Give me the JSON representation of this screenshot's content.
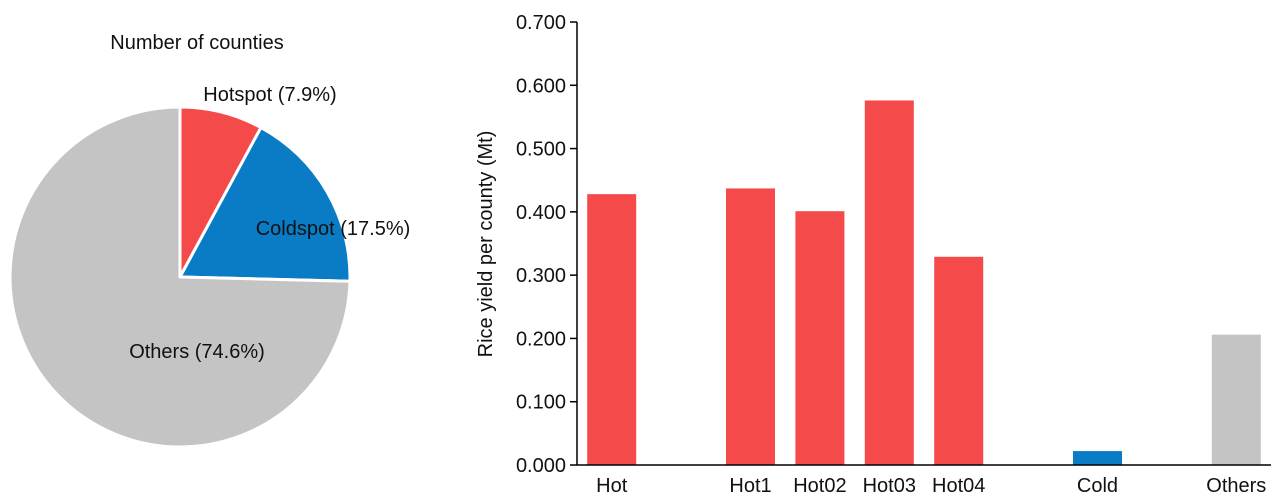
{
  "chart_data": [
    {
      "type": "pie",
      "title": "Number of counties",
      "slices": [
        {
          "label": "Hotspot (7.9%)",
          "value": 7.9,
          "color": "#f44a4a"
        },
        {
          "label": "Coldspot (17.5%)",
          "value": 17.5,
          "color": "#0a7cc6"
        },
        {
          "label": "Others (74.6%)",
          "value": 74.6,
          "color": "#c4c4c4"
        }
      ]
    },
    {
      "type": "bar",
      "ylabel": "Rice yield per county (Mt)",
      "ylim": [
        0,
        0.7
      ],
      "yticks": [
        "0.000",
        "0.100",
        "0.200",
        "0.300",
        "0.400",
        "0.500",
        "0.600",
        "0.700"
      ],
      "ytick_values": [
        0,
        0.1,
        0.2,
        0.3,
        0.4,
        0.5,
        0.6,
        0.7
      ],
      "categories": [
        "Hot",
        "",
        "Hot1",
        "Hot02",
        "Hot03",
        "Hot04",
        "",
        "Cold",
        "",
        "Others"
      ],
      "values": [
        0.428,
        null,
        0.437,
        0.401,
        0.576,
        0.329,
        null,
        0.022,
        null,
        0.206
      ],
      "colors": [
        "#f44a4a",
        null,
        "#f44a4a",
        "#f44a4a",
        "#f44a4a",
        "#f44a4a",
        null,
        "#0a7cc6",
        null,
        "#c4c4c4"
      ],
      "grid": false
    }
  ]
}
